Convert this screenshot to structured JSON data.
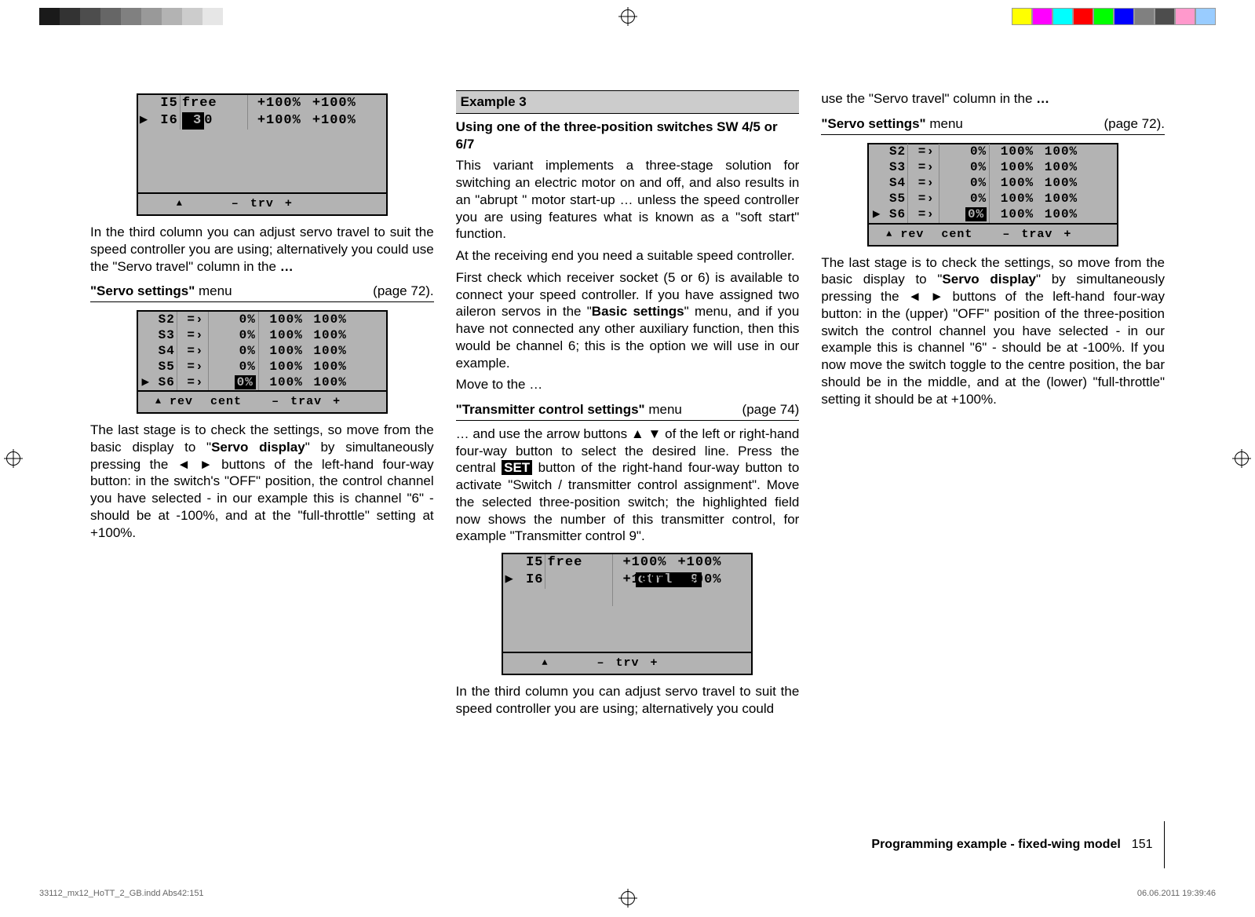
{
  "print_guides": {
    "gray_strip": [
      "#1a1a1a",
      "#333333",
      "#4d4d4d",
      "#666666",
      "#808080",
      "#999999",
      "#b3b3b3",
      "#cccccc",
      "#e6e6e6",
      "#ffffff"
    ],
    "color_strip": [
      "#ffff00",
      "#ff00ff",
      "#00ffff",
      "#ff0000",
      "#00ff00",
      "#0000ff",
      "#808080",
      "#4d4d4d",
      "#ff99cc",
      "#99ccff"
    ]
  },
  "col1": {
    "lcd1": {
      "rows": [
        {
          "ptr": "  ",
          "idx": "I5",
          "ctrl": "free   ",
          "t1": "+100%",
          "t2": "+100%"
        },
        {
          "ptr": "▶ ",
          "idx": "I6",
          "ctrl_sel": " 3",
          "ctrl_suffix": "0  ",
          "t1": "+100%",
          "t2": "+100%"
        }
      ],
      "footer": {
        "up": "▲",
        "minus": "–",
        "label": "trv",
        "plus": "+"
      }
    },
    "p1a": "In the third column you can adjust servo travel to suit the speed controller you are using; alternatively you could use the \"Servo travel\" column in the ",
    "p1b": "…",
    "menuref1": {
      "label_a": "\"Servo settings\"",
      "label_b": " menu",
      "page": "(page 72)."
    },
    "lcd2": {
      "rows": [
        {
          "ptr": "  ",
          "idx": "S2",
          "sw": " =›",
          "c1": "0%",
          "c2": "100%",
          "c3": "100%"
        },
        {
          "ptr": "  ",
          "idx": "S3",
          "sw": " =›",
          "c1": "0%",
          "c2": "100%",
          "c3": "100%"
        },
        {
          "ptr": "  ",
          "idx": "S4",
          "sw": " =›",
          "c1": "0%",
          "c2": "100%",
          "c3": "100%"
        },
        {
          "ptr": "  ",
          "idx": "S5",
          "sw": " =›",
          "c1": "0%",
          "c2": "100%",
          "c3": "100%"
        },
        {
          "ptr": "▶",
          "idx": "S6",
          "sw": " =›",
          "c1_sel": "0%",
          "c2": "100%",
          "c3": "100%"
        }
      ],
      "footer": {
        "up": "▲",
        "rev": "rev",
        "cent": "cent",
        "minus": "–",
        "trav": "trav",
        "plus": "+"
      }
    },
    "p2a": "The last stage is to check the settings, so move from the basic display to \"",
    "p2b": "Servo display",
    "p2c": "\" by simultaneously pressing the ◄ ► buttons of the left-hand four-way button: in the switch's \"OFF\" position, the control channel you have selected - in our example this is channel \"6\" - should be at -100%, and at the \"full-throttle\" setting at +100%."
  },
  "col2": {
    "ex_head": "Example 3",
    "sub_head": "Using one of the three-position switches SW 4/5 or 6/7",
    "p1": "This variant implements a three-stage solution for switching an electric motor on and off, and also results in an \"abrupt \" motor start-up … unless the speed controller you are using features what is known as a \"soft start\" function.",
    "p2": "At the receiving end you need a suitable speed controller.",
    "p3a": "First check which receiver socket (5 or 6) is available to connect your speed controller. If you have assigned two aileron servos in the \"",
    "p3b": "Basic settings",
    "p3c": "\" menu, and if you have not connected any other auxiliary function, then this would be channel 6; this is the option we will use in our example.",
    "p4": "Move to the …",
    "menuref2": {
      "label_a": "\"Transmitter control settings\"",
      "label_b": " menu",
      "page": "(page 74)"
    },
    "p5a": "… and use the arrow buttons ▲ ▼ of the left or right-hand four-way button to select the desired line. Press the central ",
    "p5_set": "SET",
    "p5b": " button of the right-hand four-way button to activate \"Switch / transmitter control assignment\". Move the selected three-position switch; the highlighted field now shows the number of this transmitter control, for example \"Transmitter control 9\".",
    "lcd3": {
      "rows": [
        {
          "ptr": "  ",
          "idx": "I5",
          "ctrl": "free   ",
          "t1": "+100%",
          "t2": "+100%"
        },
        {
          "ptr": "▶ ",
          "idx": "I6",
          "ctrl_sel": "ctrl  9",
          "t1": "+100%",
          "t2": "+100%"
        }
      ],
      "footer": {
        "up": "▲",
        "minus": "–",
        "label": "trv",
        "plus": "+"
      }
    },
    "p6": "In the third column you can adjust servo travel to suit the speed controller you are using; alternatively you could"
  },
  "col3": {
    "p1a": "use the \"Servo travel\" column in the ",
    "p1b": "…",
    "menuref3": {
      "label_a": "\"Servo settings\"",
      "label_b": " menu",
      "page": "(page 72)."
    },
    "lcd4": {
      "rows": [
        {
          "ptr": "  ",
          "idx": "S2",
          "sw": " =›",
          "c1": "0%",
          "c2": "100%",
          "c3": "100%"
        },
        {
          "ptr": "  ",
          "idx": "S3",
          "sw": " =›",
          "c1": "0%",
          "c2": "100%",
          "c3": "100%"
        },
        {
          "ptr": "  ",
          "idx": "S4",
          "sw": " =›",
          "c1": "0%",
          "c2": "100%",
          "c3": "100%"
        },
        {
          "ptr": "  ",
          "idx": "S5",
          "sw": " =›",
          "c1": "0%",
          "c2": "100%",
          "c3": "100%"
        },
        {
          "ptr": "▶",
          "idx": "S6",
          "sw": " =›",
          "c1_sel": "0%",
          "c2": "100%",
          "c3": "100%"
        }
      ],
      "footer": {
        "up": "▲",
        "rev": "rev",
        "cent": "cent",
        "minus": "–",
        "trav": "trav",
        "plus": "+"
      }
    },
    "p2a": "The last stage is to check the settings, so move from the basic display to \"",
    "p2b": "Servo display",
    "p2c": "\" by simultaneously pressing the ◄ ► buttons of the left-hand four-way button: in the (upper) \"OFF\" position of the three-position switch the control channel you have selected - in our example this is channel \"6\" - should be at -100%. If you now move the switch toggle to the centre position, the bar should be in the middle, and at the (lower) \"full-throttle\" setting it should be at +100%."
  },
  "footer": {
    "title": "Programming example - fixed-wing model",
    "page": "151"
  },
  "indd": {
    "file": "33112_mx12_HoTT_2_GB.indd   Abs42:151",
    "stamp": "06.06.2011   19:39:46"
  }
}
